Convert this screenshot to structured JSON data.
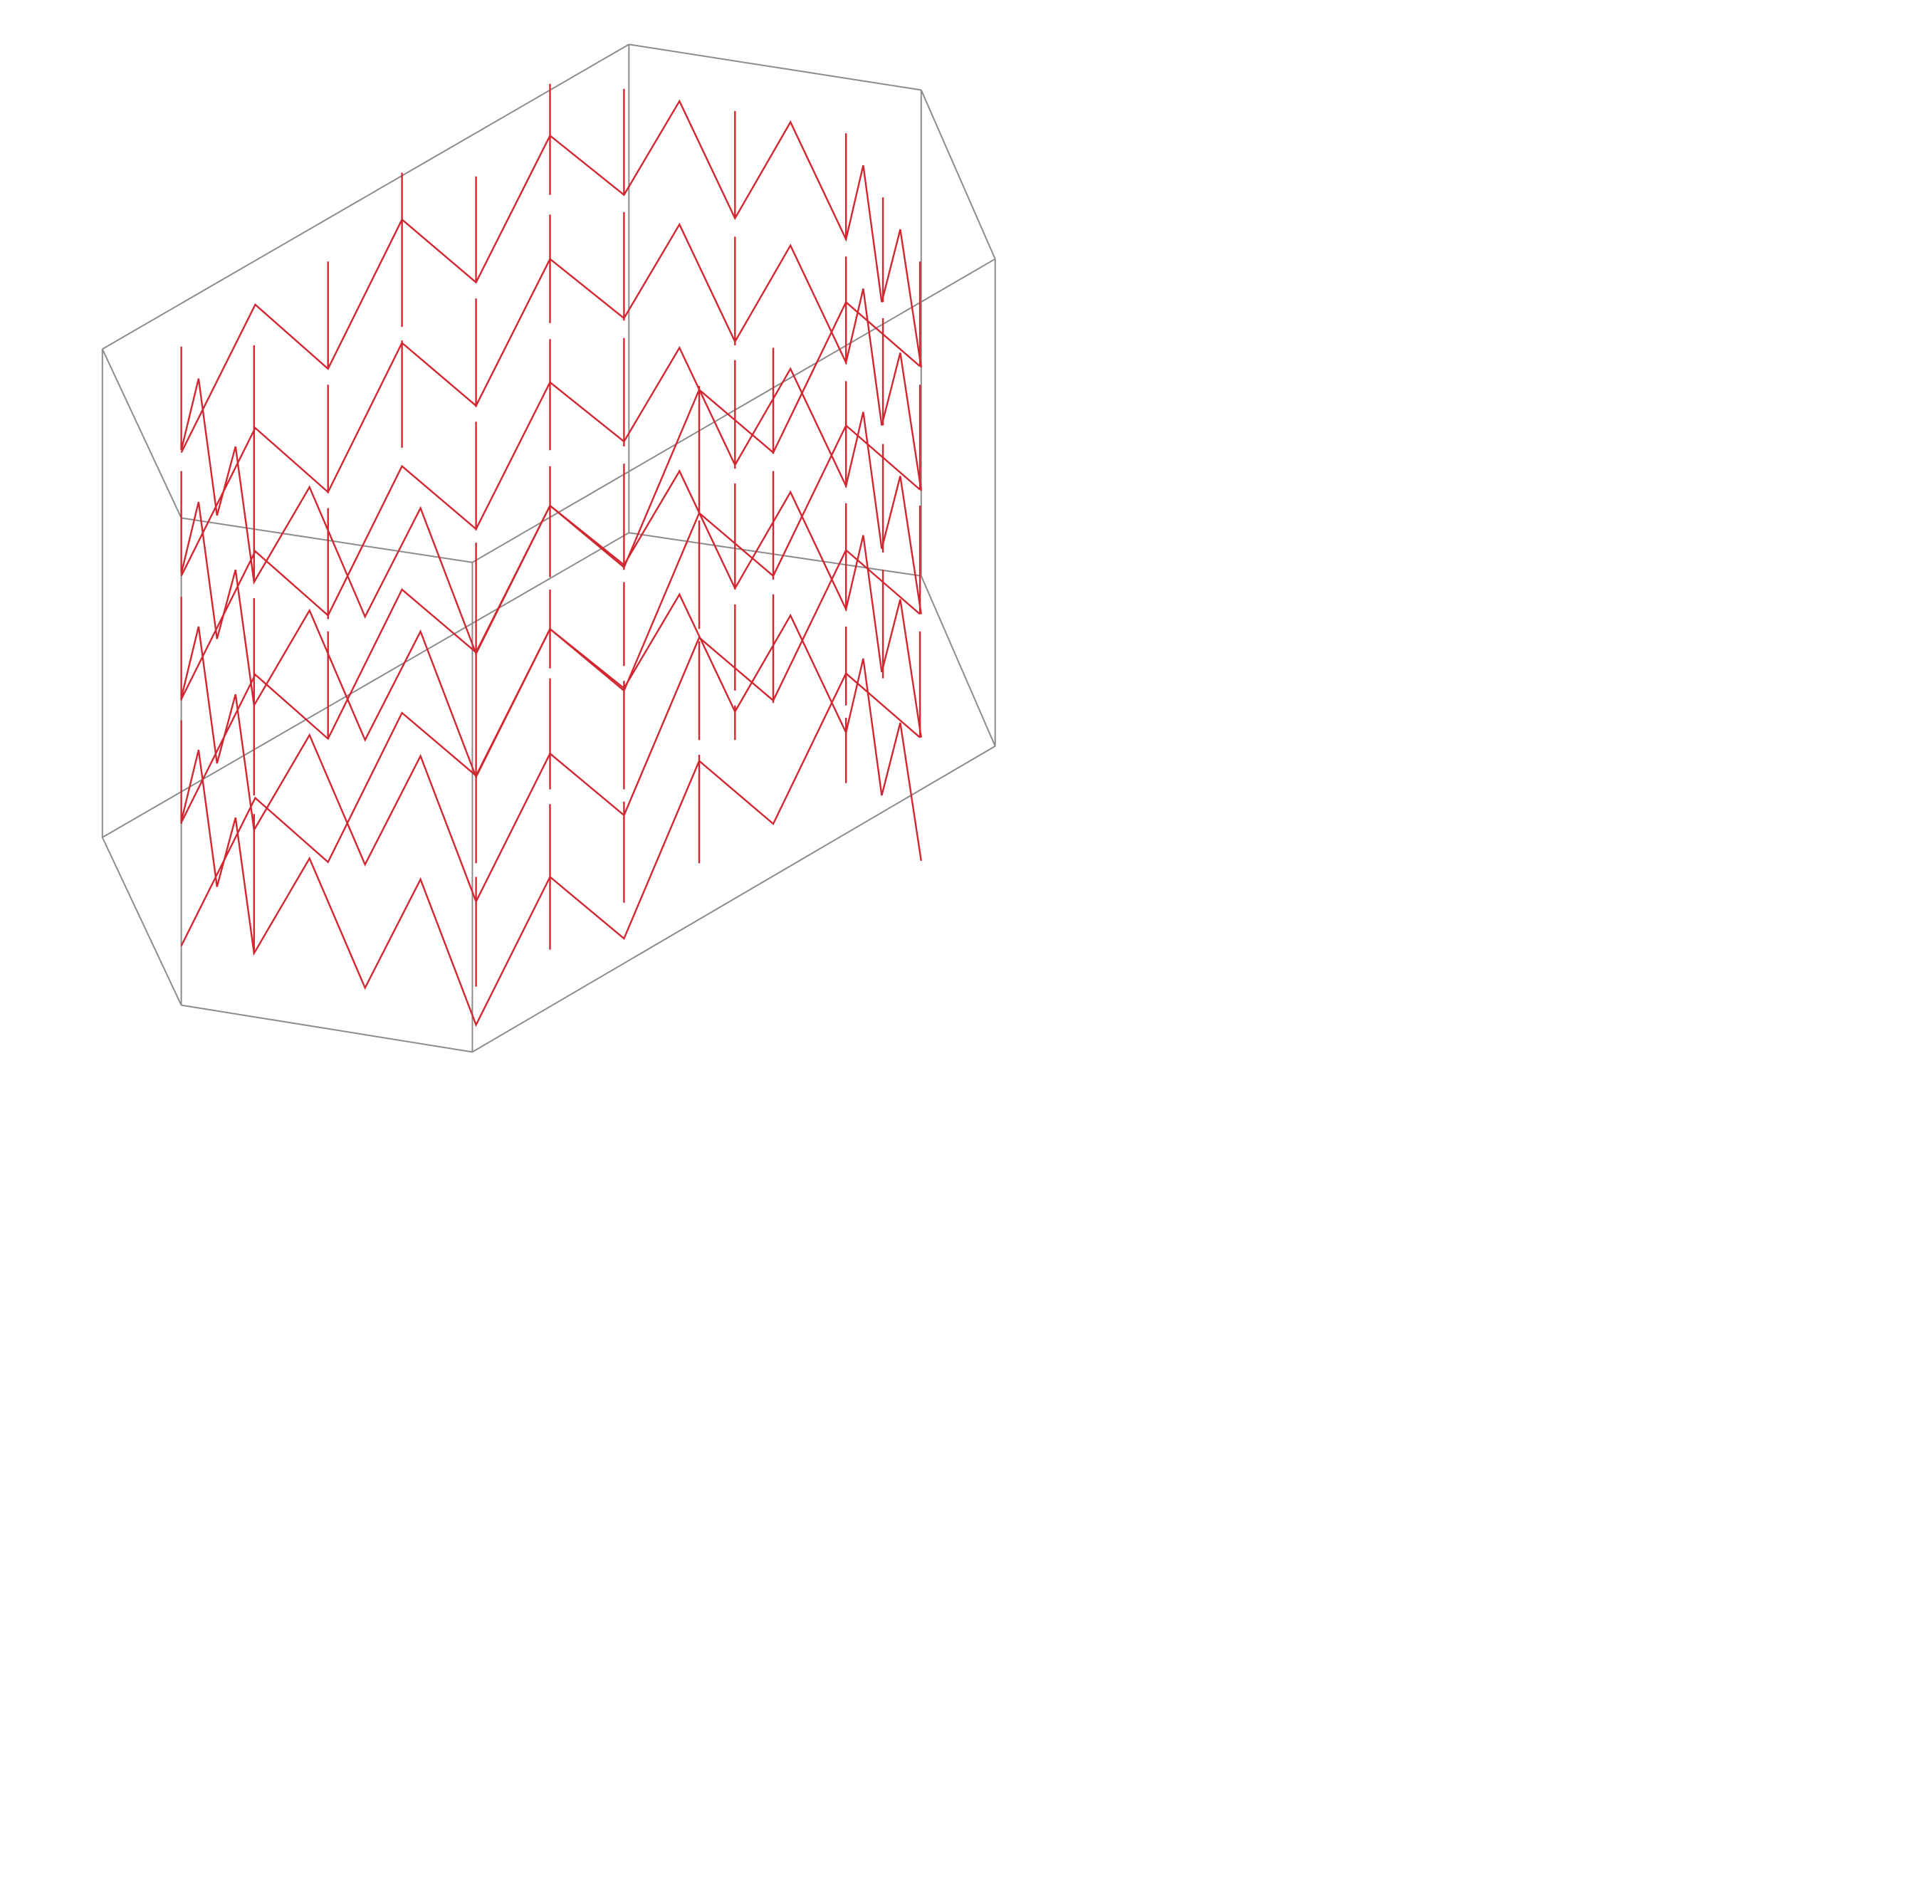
{
  "diagram": {
    "type": "isometric-wireframe",
    "colors": {
      "background": "#ffffff",
      "box_edges": "#8c8c8c",
      "pattern_lines": "#d22630"
    }
  }
}
